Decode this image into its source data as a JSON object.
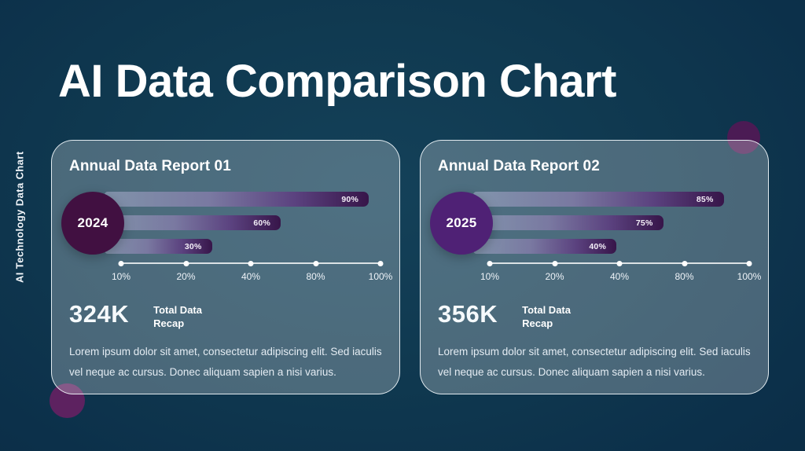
{
  "page": {
    "title": "AI Data Comparison Chart",
    "sidebar_label": "AI Technology Data Chart"
  },
  "colors": {
    "background_navy": "#0e3750",
    "bar_gradient_end_purple": "#371549",
    "deco_circle_top_right": "#4b1b54",
    "deco_circle_bottom_left": "#5d2260"
  },
  "chart_data": [
    {
      "type": "bar",
      "title": "Annual Data Report 01",
      "year": "2024",
      "circle_color": "#411041",
      "bars": [
        {
          "label": "90%",
          "value": 90,
          "width_pct": 96
        },
        {
          "label": "60%",
          "value": 60,
          "width_pct": 64
        },
        {
          "label": "30%",
          "value": 30,
          "width_pct": 39
        }
      ],
      "axis_ticks": [
        "10%",
        "20%",
        "40%",
        "80%",
        "100%"
      ],
      "total": "324K",
      "total_label_line1": "Total Data",
      "total_label_line2": "Recap",
      "description": "Lorem ipsum dolor sit amet, consectetur adipiscing elit. Sed iaculis vel neque ac cursus. Donec aliquam sapien a nisi varius."
    },
    {
      "type": "bar",
      "title": "Annual Data Report 02",
      "year": "2025",
      "circle_color": "#4f2175",
      "bars": [
        {
          "label": "85%",
          "value": 85,
          "width_pct": 91
        },
        {
          "label": "75%",
          "value": 75,
          "width_pct": 69
        },
        {
          "label": "40%",
          "value": 40,
          "width_pct": 52
        }
      ],
      "axis_ticks": [
        "10%",
        "20%",
        "40%",
        "80%",
        "100%"
      ],
      "total": "356K",
      "total_label_line1": "Total Data",
      "total_label_line2": "Recap",
      "description": "Lorem ipsum dolor sit amet, consectetur adipiscing elit. Sed iaculis vel neque ac cursus. Donec aliquam sapien a nisi varius."
    }
  ]
}
